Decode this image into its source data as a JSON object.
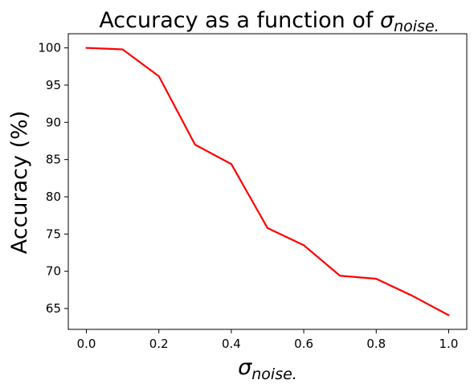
{
  "chart_data": {
    "type": "line",
    "title": {
      "prefix": "Accuracy as a function of ",
      "symbol": "σ",
      "subscript": "noise."
    },
    "xlabel": {
      "symbol": "σ",
      "subscript": "noise."
    },
    "ylabel": "Accuracy (%)",
    "xlim": [
      -0.05,
      1.05
    ],
    "ylim": [
      62.2,
      101.9
    ],
    "xticks": [
      0.0,
      0.2,
      0.4,
      0.6,
      0.8,
      1.0
    ],
    "xtick_labels": [
      "0.0",
      "0.2",
      "0.4",
      "0.6",
      "0.8",
      "1.0"
    ],
    "yticks": [
      65,
      70,
      75,
      80,
      85,
      90,
      95,
      100
    ],
    "ytick_labels": [
      "65",
      "70",
      "75",
      "80",
      "85",
      "90",
      "95",
      "100"
    ],
    "grid": false,
    "series": [
      {
        "color": "#ff0000",
        "x": [
          0.0,
          0.1,
          0.2,
          0.3,
          0.4,
          0.5,
          0.6,
          0.7,
          0.8,
          0.9,
          1.0
        ],
        "y": [
          100.0,
          99.8,
          96.2,
          87.0,
          84.4,
          75.8,
          73.5,
          69.4,
          69.0,
          66.7,
          64.1
        ]
      }
    ]
  }
}
